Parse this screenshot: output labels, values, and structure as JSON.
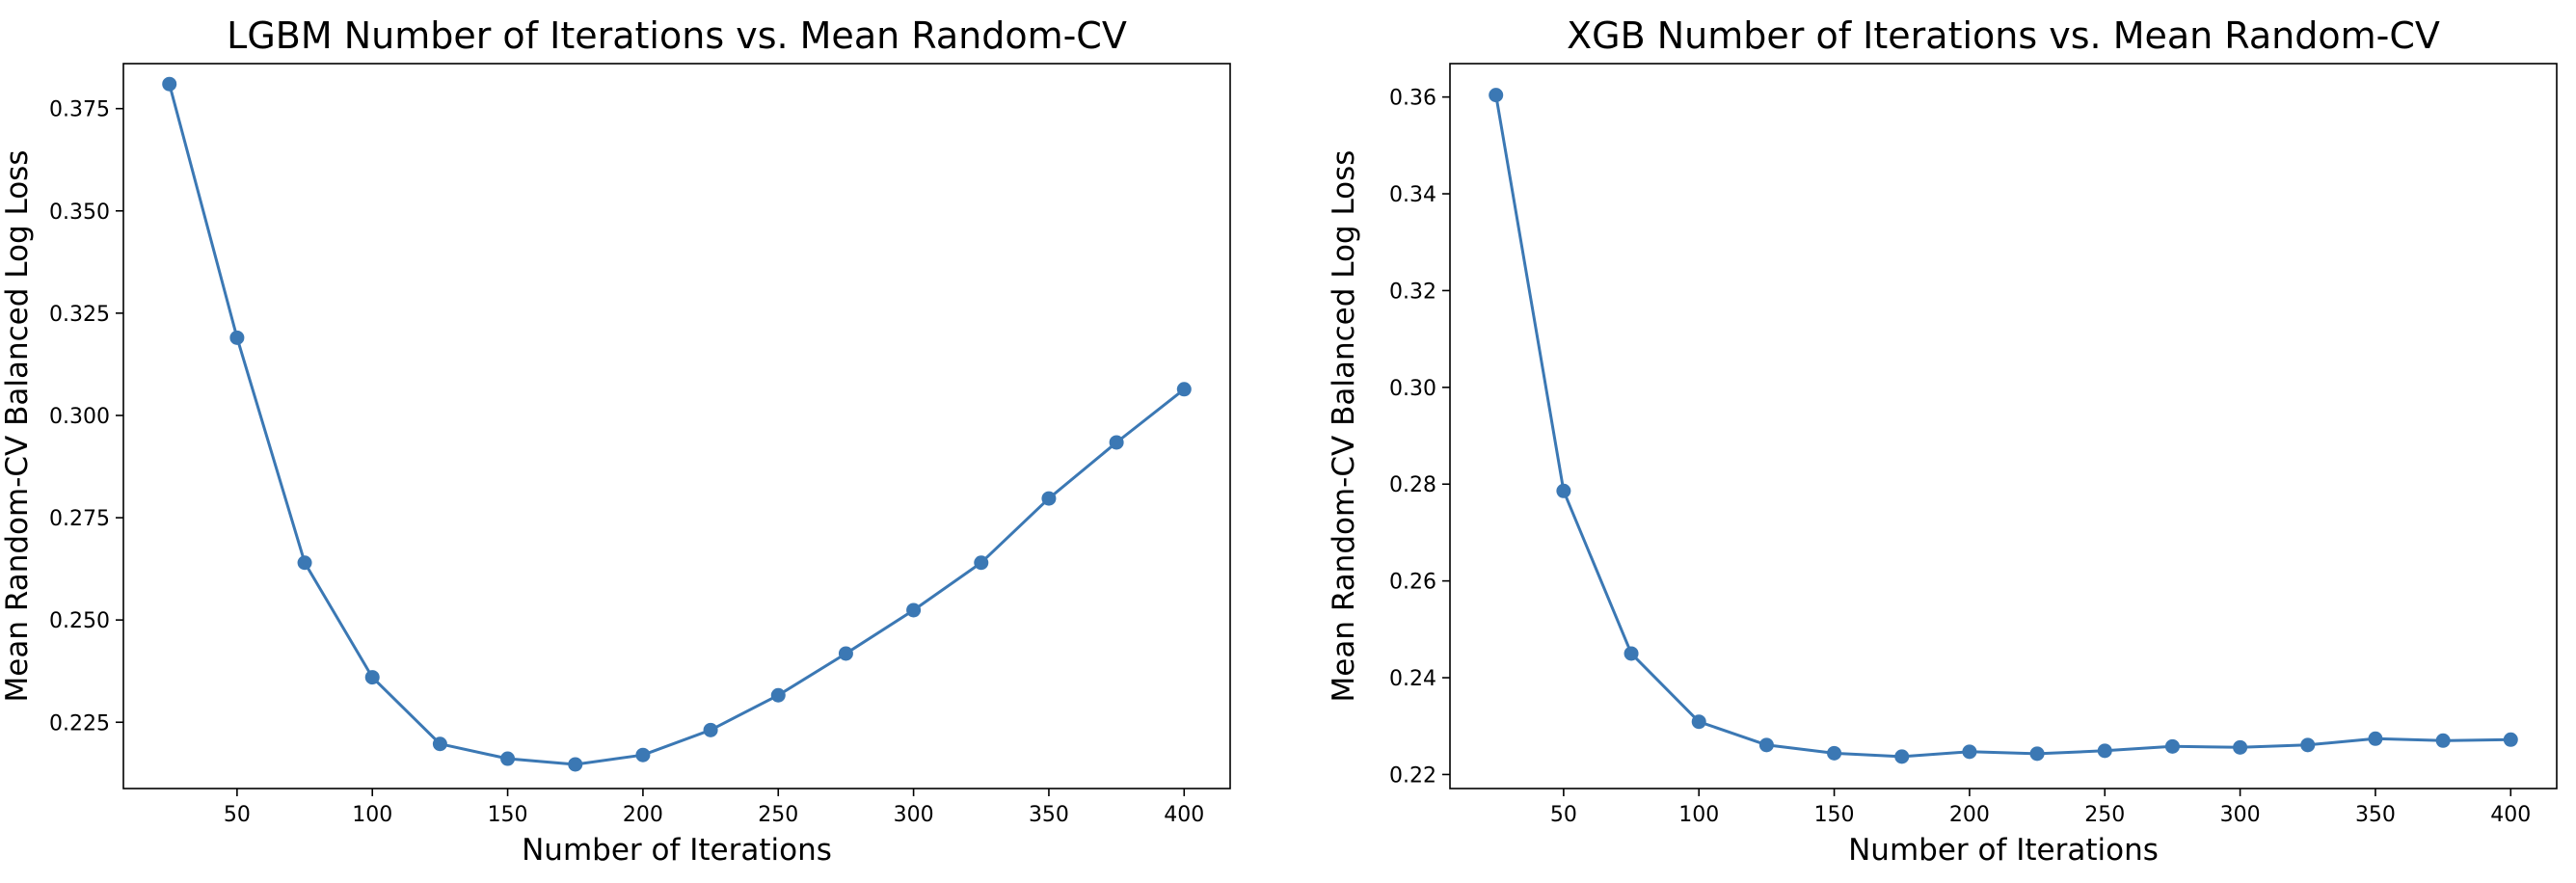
{
  "chart_data": [
    {
      "type": "line",
      "title": "LGBM Number of Iterations vs. Mean Random-CV",
      "xlabel": "Number of Iterations",
      "ylabel": "Mean Random-CV Balanced Log Loss",
      "xlim": [
        8,
        417
      ],
      "ylim": [
        0.2088,
        0.386
      ],
      "xticks": [
        50,
        100,
        150,
        200,
        250,
        300,
        350,
        400
      ],
      "xtick_labels": [
        "50",
        "100",
        "150",
        "200",
        "250",
        "300",
        "350",
        "400"
      ],
      "yticks": [
        0.225,
        0.25,
        0.275,
        0.3,
        0.325,
        0.35,
        0.375
      ],
      "ytick_labels": [
        "0.225",
        "0.250",
        "0.275",
        "0.300",
        "0.325",
        "0.350",
        "0.375"
      ],
      "grid": false,
      "color": "#3b78b4",
      "x": [
        25,
        50,
        75,
        100,
        125,
        150,
        175,
        200,
        225,
        250,
        275,
        300,
        325,
        350,
        375,
        400
      ],
      "y": [
        0.381,
        0.319,
        0.264,
        0.236,
        0.2197,
        0.2161,
        0.2147,
        0.217,
        0.2231,
        0.2316,
        0.2418,
        0.2524,
        0.264,
        0.2797,
        0.2934,
        0.3064
      ]
    },
    {
      "type": "line",
      "title": "XGB Number of Iterations vs. Mean Random-CV",
      "xlabel": "Number of Iterations",
      "ylabel": "Mean Random-CV Balanced Log Loss",
      "xlim": [
        8,
        417
      ],
      "ylim": [
        0.2171,
        0.3669
      ],
      "xticks": [
        50,
        100,
        150,
        200,
        250,
        300,
        350,
        400
      ],
      "xtick_labels": [
        "50",
        "100",
        "150",
        "200",
        "250",
        "300",
        "350",
        "400"
      ],
      "yticks": [
        0.22,
        0.24,
        0.26,
        0.28,
        0.3,
        0.32,
        0.34,
        0.36
      ],
      "ytick_labels": [
        "0.22",
        "0.24",
        "0.26",
        "0.28",
        "0.30",
        "0.32",
        "0.34",
        "0.36"
      ],
      "grid": false,
      "color": "#3b78b4",
      "x": [
        25,
        50,
        75,
        100,
        125,
        150,
        175,
        200,
        225,
        250,
        275,
        300,
        325,
        350,
        375,
        400
      ],
      "y": [
        0.3604,
        0.2786,
        0.245,
        0.2309,
        0.2261,
        0.2244,
        0.2237,
        0.2247,
        0.2243,
        0.2249,
        0.2258,
        0.2256,
        0.2261,
        0.2274,
        0.227,
        0.2272
      ]
    }
  ]
}
